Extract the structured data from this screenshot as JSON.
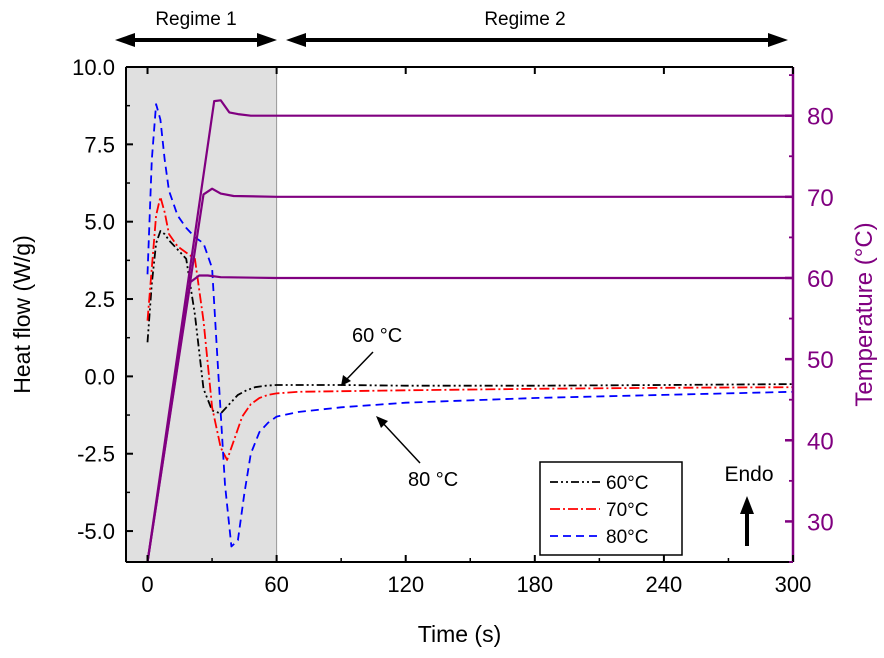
{
  "chart_data": {
    "type": "line",
    "xlabel": "Time (s)",
    "ylabel_left": "Heat flow (W/g)",
    "ylabel_right": "Temperature (°C)",
    "xlim": [
      -10,
      300
    ],
    "ylim_left": [
      -6,
      10
    ],
    "ylim_right": [
      25,
      86
    ],
    "xticks": [
      0,
      60,
      120,
      180,
      240,
      300
    ],
    "xtick_labels": [
      "0",
      "60",
      "120",
      "180",
      "240",
      "300"
    ],
    "yticks_left": [
      -5.0,
      -2.5,
      0.0,
      2.5,
      5.0,
      7.5,
      10.0
    ],
    "ytick_labels_left": [
      "-5.0",
      "-2.5",
      "0.0",
      "2.5",
      "5.0",
      "7.5",
      "10.0"
    ],
    "yticks_right": [
      30,
      40,
      50,
      60,
      70,
      80
    ],
    "ytick_labels_right": [
      "30",
      "40",
      "50",
      "60",
      "70",
      "80"
    ],
    "right_axis_color": "#800080",
    "grid": false,
    "shaded_region": {
      "x": [
        -10,
        60
      ],
      "color": "#e0e0e0"
    },
    "regimes": [
      {
        "label": "Regime 1",
        "x": [
          -10,
          60
        ]
      },
      {
        "label": "Regime 2",
        "x": [
          60,
          300
        ]
      }
    ],
    "endo_label": "Endo",
    "annotations": [
      {
        "text": "60 °C",
        "x": 90,
        "y": -0.25
      },
      {
        "text": "80 °C",
        "x": 107,
        "y": -1.35
      }
    ],
    "series": [
      {
        "name": "60°C",
        "axis": "left",
        "color": "#000000",
        "dash": "8,3,2,3,2,3",
        "x": [
          0,
          2,
          4,
          6,
          8,
          10,
          14,
          18,
          22,
          26,
          30,
          34,
          38,
          42,
          46,
          50,
          55,
          60,
          70,
          90,
          120,
          180,
          240,
          300
        ],
        "y": [
          1.1,
          3.0,
          4.3,
          4.7,
          4.6,
          4.4,
          4.1,
          3.8,
          2.0,
          -0.4,
          -1.1,
          -1.2,
          -0.9,
          -0.6,
          -0.45,
          -0.35,
          -0.3,
          -0.28,
          -0.28,
          -0.28,
          -0.3,
          -0.3,
          -0.28,
          -0.25
        ]
      },
      {
        "name": "70°C",
        "axis": "left",
        "color": "#ff0000",
        "dash": "10,3,2,3",
        "x": [
          0,
          2,
          4,
          6,
          8,
          10,
          14,
          18,
          22,
          26,
          30,
          34,
          37,
          40,
          44,
          48,
          52,
          56,
          60,
          70,
          90,
          120,
          180,
          240,
          300
        ],
        "y": [
          1.8,
          3.5,
          5.2,
          5.8,
          5.3,
          4.6,
          4.2,
          4.0,
          3.8,
          1.8,
          -1.0,
          -2.3,
          -2.7,
          -2.1,
          -1.3,
          -0.9,
          -0.7,
          -0.6,
          -0.55,
          -0.5,
          -0.48,
          -0.45,
          -0.4,
          -0.37,
          -0.35
        ]
      },
      {
        "name": "80°C",
        "axis": "left",
        "color": "#0000ff",
        "dash": "8,5",
        "x": [
          0,
          2,
          4,
          6,
          8,
          10,
          14,
          18,
          22,
          26,
          30,
          33,
          36,
          39,
          42,
          45,
          48,
          52,
          56,
          60,
          70,
          90,
          120,
          180,
          240,
          300
        ],
        "y": [
          3.3,
          7.0,
          8.8,
          8.3,
          7.0,
          6.0,
          5.2,
          4.8,
          4.5,
          4.3,
          3.5,
          0.0,
          -3.5,
          -5.5,
          -5.3,
          -3.8,
          -2.5,
          -1.8,
          -1.5,
          -1.3,
          -1.15,
          -1.0,
          -0.85,
          -0.7,
          -0.6,
          -0.5
        ]
      },
      {
        "name": "",
        "axis": "right",
        "color": "#800080",
        "dash": "",
        "x": [
          0,
          31,
          34,
          38,
          42,
          48,
          60,
          300
        ],
        "y": [
          25,
          81.8,
          81.9,
          80.4,
          80.2,
          80.0,
          80.0,
          80.0
        ]
      },
      {
        "name": "",
        "axis": "right",
        "color": "#800080",
        "dash": "",
        "x": [
          0,
          26,
          30,
          34,
          40,
          60,
          300
        ],
        "y": [
          25,
          70.3,
          71.0,
          70.4,
          70.1,
          70.0,
          70.0
        ]
      },
      {
        "name": "",
        "axis": "right",
        "color": "#800080",
        "dash": "",
        "x": [
          0,
          20,
          24,
          28,
          34,
          60,
          300
        ],
        "y": [
          25,
          59.5,
          60.3,
          60.3,
          60.1,
          60.0,
          60.0
        ]
      }
    ],
    "legend": {
      "position": "bottom-right",
      "entries": [
        "60°C",
        "70°C",
        "80°C"
      ]
    }
  }
}
